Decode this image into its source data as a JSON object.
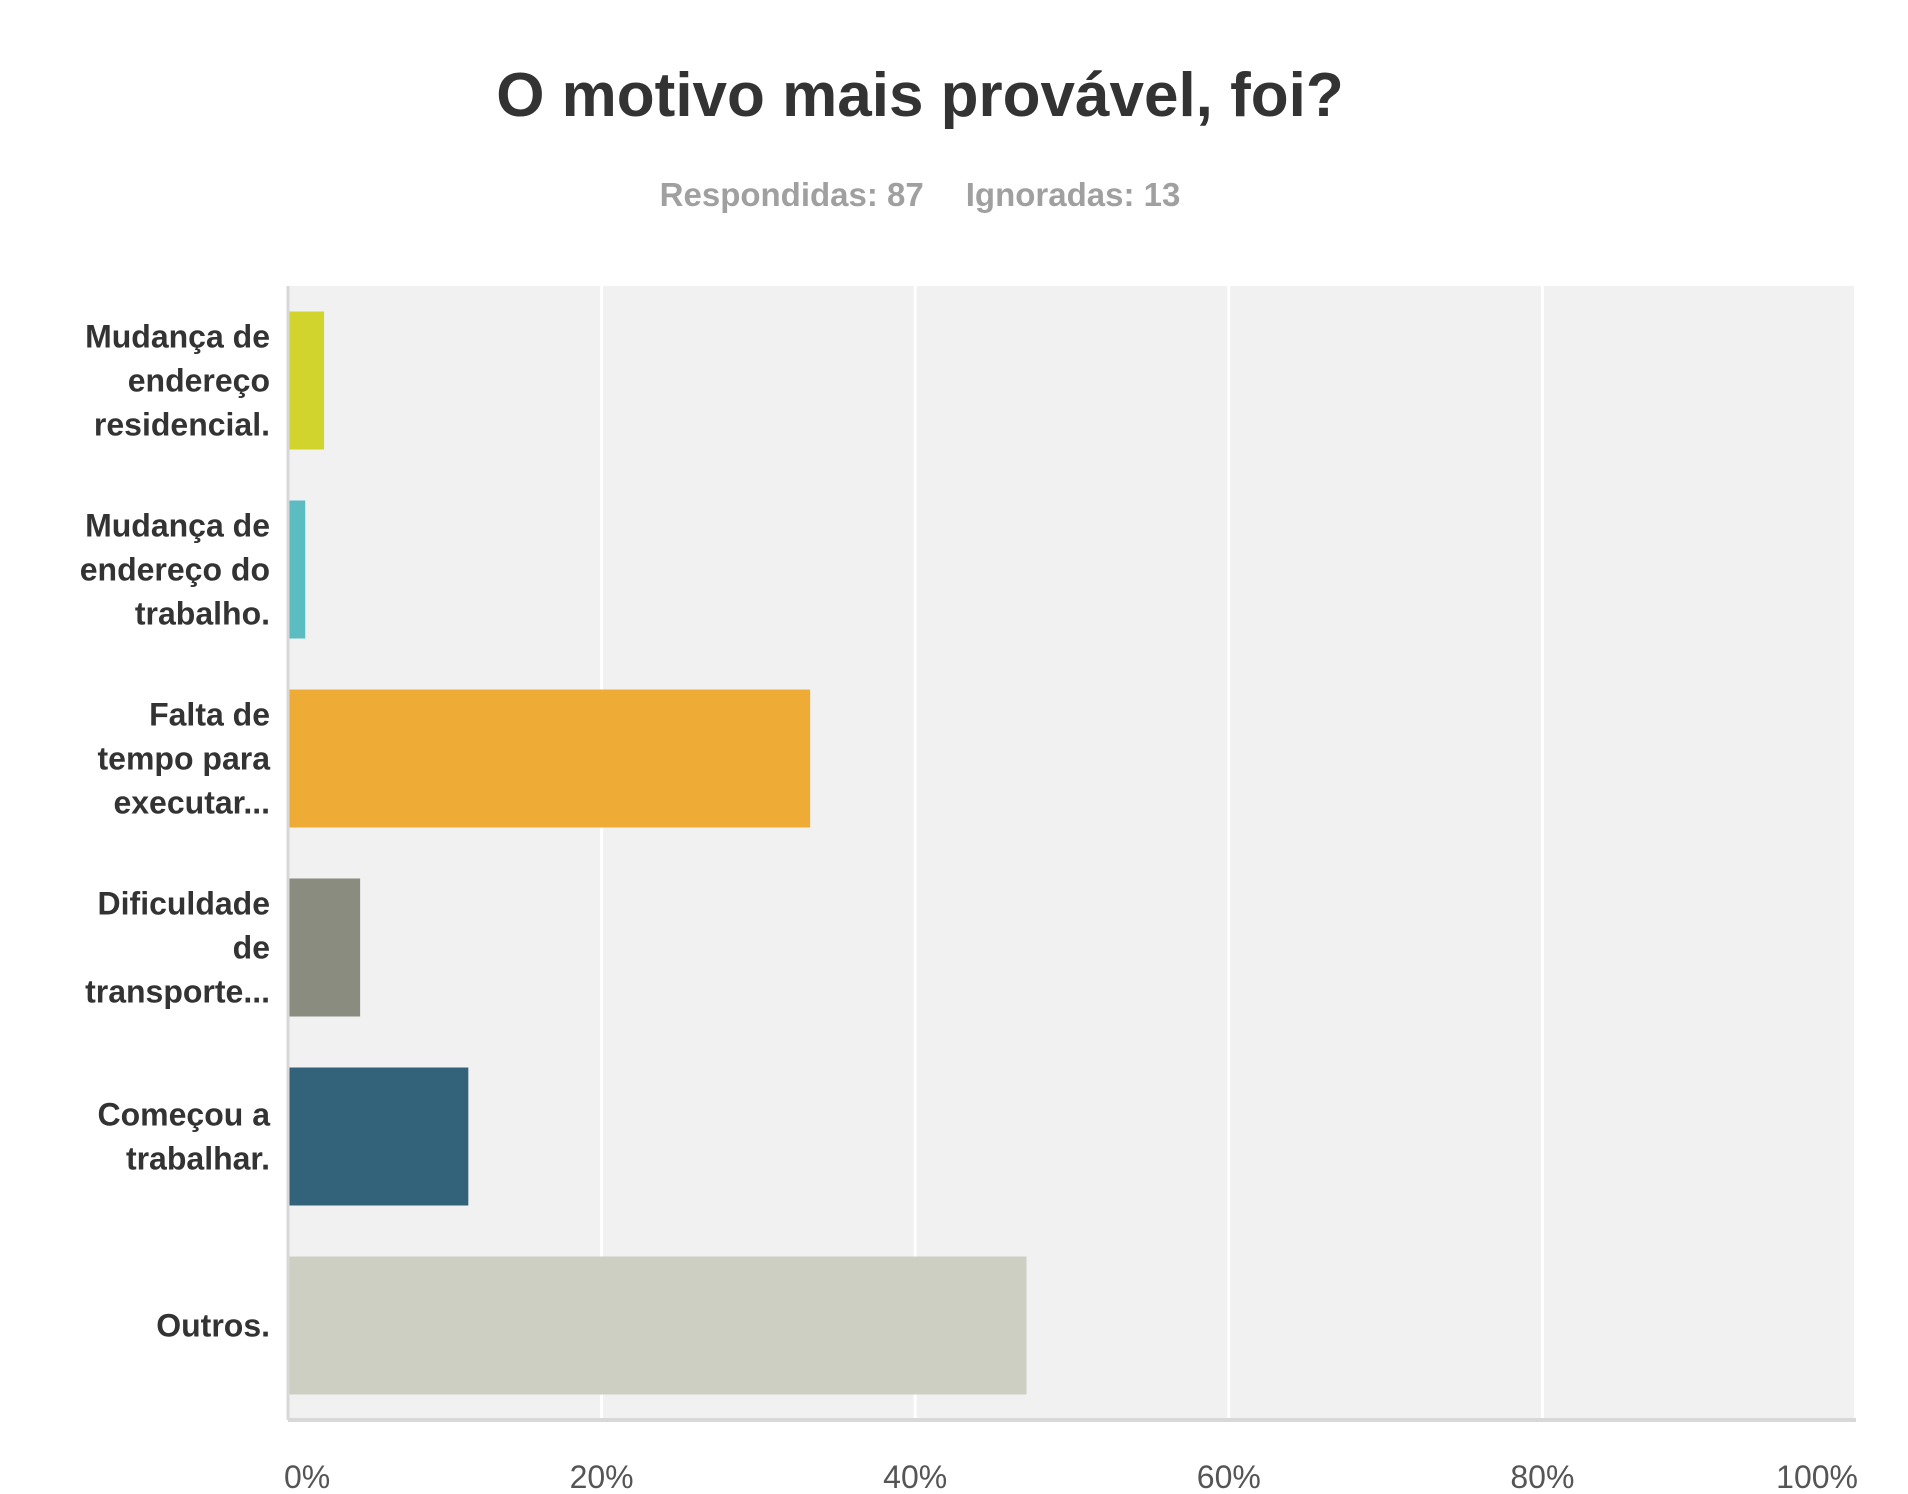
{
  "chart_data": {
    "type": "bar",
    "orientation": "horizontal",
    "title": "O motivo mais provável, foi?",
    "subtitle": {
      "answered": "Respondidas: 87",
      "skipped": "Ignoradas: 13"
    },
    "categories": [
      [
        "Mudança de",
        "endereço",
        "residencial."
      ],
      [
        "Mudança de",
        "endereço do",
        "trabalho."
      ],
      [
        "Falta de",
        "tempo para",
        "executar..."
      ],
      [
        "Dificuldade",
        "de",
        "transporte..."
      ],
      [
        "Começou a",
        "trabalhar."
      ],
      [
        "Outros."
      ]
    ],
    "values": [
      2.3,
      1.1,
      33.3,
      4.6,
      11.5,
      47.1
    ],
    "colors": [
      "#d1d42d",
      "#5bbcc2",
      "#eeab36",
      "#8b8c80",
      "#33637a",
      "#cdcfc3"
    ],
    "xlim": [
      0,
      100
    ],
    "xticks": [
      0,
      20,
      40,
      60,
      80,
      100
    ],
    "tick_labels": [
      "0%",
      "20%",
      "40%",
      "60%",
      "80%",
      "100%"
    ],
    "grid": true,
    "legend": "none"
  }
}
